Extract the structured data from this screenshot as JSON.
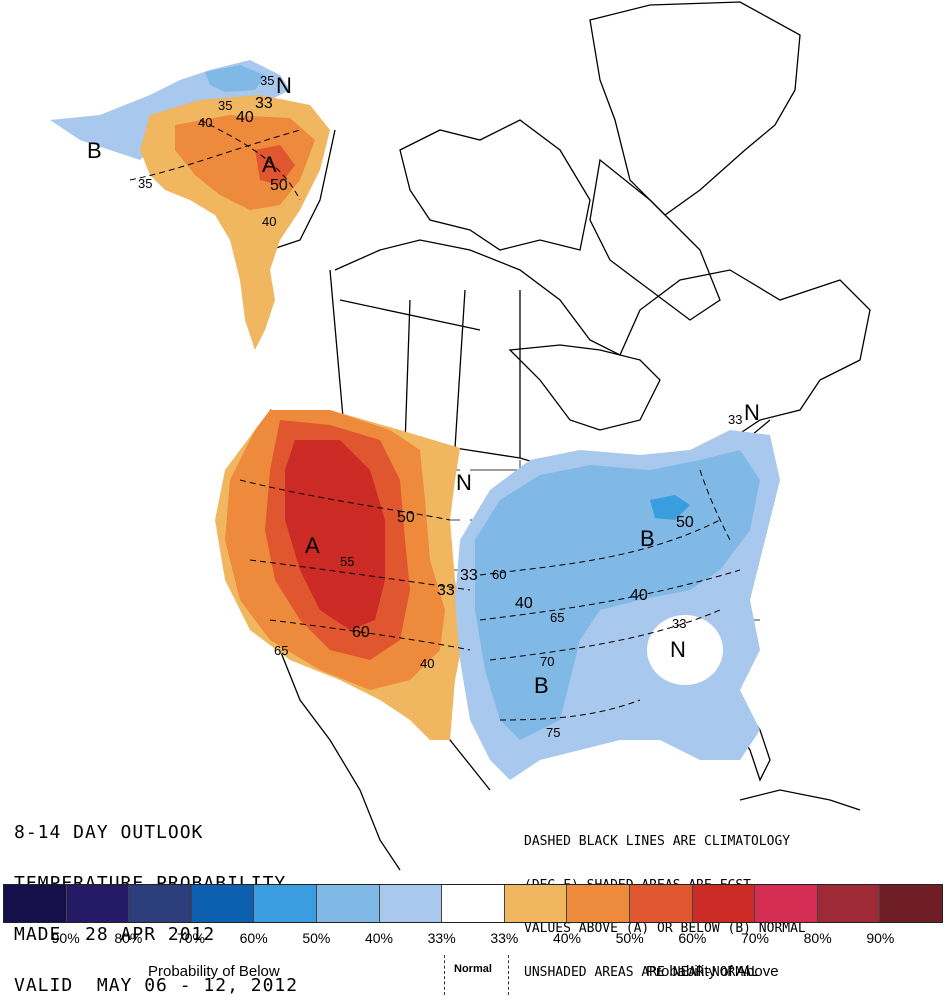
{
  "title_lines": [
    "8-14 DAY OUTLOOK",
    "TEMPERATURE PROBABILITY",
    "MADE  28 APR 2012",
    "VALID  MAY 06 - 12, 2012"
  ],
  "note_lines": [
    "DASHED BLACK LINES ARE CLIMATOLOGY",
    "(DEG F) SHADED AREAS ARE FCST",
    "VALUES ABOVE (A) OR BELOW (B) NORMAL",
    "UNSHADED AREAS ARE NEAR-NORMAL"
  ],
  "legend": {
    "colors": [
      "#15104a",
      "#241a66",
      "#2c3f7c",
      "#0d5fb0",
      "#3a9de0",
      "#80b8e6",
      "#a8c8ee",
      "#ffffff",
      "#f0b660",
      "#ee8a3c",
      "#e0562e",
      "#cc2a24",
      "#d42c52",
      "#9e2a38",
      "#6e1e24"
    ],
    "percents": [
      "90%",
      "80%",
      "70%",
      "60%",
      "50%",
      "40%",
      "33%",
      "33%",
      "40%",
      "50%",
      "60%",
      "70%",
      "80%",
      "90%"
    ],
    "below_label": "Probability of Below",
    "normal_label": "Normal",
    "above_label": "Probability of Above"
  },
  "region_letters": {
    "alaska_b": "B",
    "alaska_a": "A",
    "alaska_n": "N",
    "west_a": "A",
    "plains_n": "N",
    "east_b": "B",
    "south_b": "B",
    "southeast_n": "N",
    "northeast_n": "N"
  },
  "contour_labels": {
    "ak_35a": "35",
    "ak_35b": "35",
    "ak_35c": "35",
    "ak_33": "33",
    "ak_40a": "40",
    "ak_40b": "40",
    "ak_50": "50",
    "ak_40c": "40",
    "w_50": "50",
    "w_55": "55",
    "w_60": "60",
    "w_65": "65",
    "w_40": "40",
    "w_33a": "33",
    "w_33b": "33",
    "e_50": "50",
    "e_60": "60",
    "e_40a": "40",
    "e_65": "65",
    "e_40b": "40",
    "e_70": "70",
    "e_75": "75",
    "se_33": "33",
    "ne_33": "33"
  }
}
